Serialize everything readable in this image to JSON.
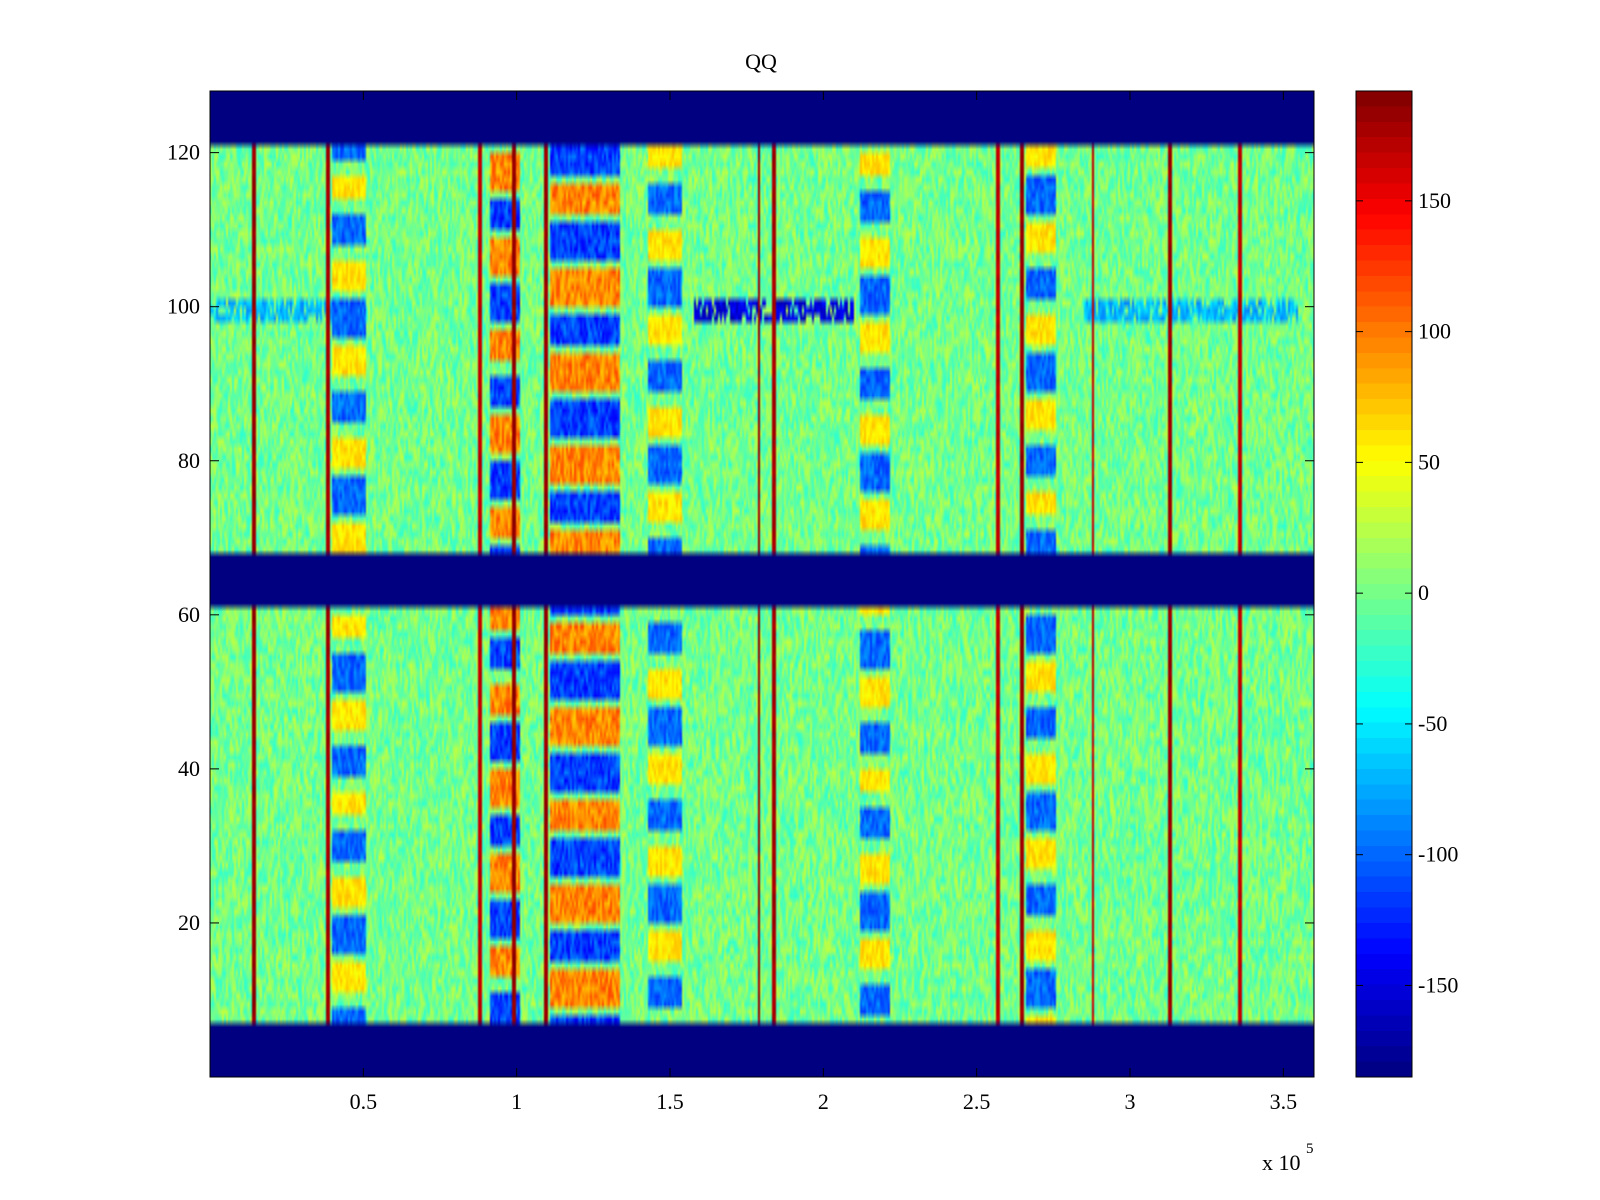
{
  "chart_data": {
    "type": "heatmap",
    "title": "QQ",
    "xlabel": "",
    "ylabel": "",
    "xlim": [
      0,
      360000
    ],
    "ylim": [
      0,
      128
    ],
    "x_ticks": [
      50000,
      100000,
      150000,
      200000,
      250000,
      300000,
      350000
    ],
    "x_tick_labels": [
      "0.5",
      "1",
      "1.5",
      "2",
      "2.5",
      "3",
      "3.5"
    ],
    "x_exponent_label": "x 10",
    "x_exponent_power": "5",
    "y_ticks": [
      20,
      40,
      60,
      80,
      100,
      120
    ],
    "y_tick_labels": [
      "20",
      "40",
      "60",
      "80",
      "100",
      "120"
    ],
    "colormap": "jet",
    "clim": [
      -185,
      192
    ],
    "colorbar": {
      "placement": "right",
      "ticks": [
        -150,
        -100,
        -50,
        0,
        50,
        100,
        150
      ],
      "tick_labels": [
        "-150",
        "-100",
        "-50",
        "0",
        "50",
        "100",
        "150"
      ]
    },
    "constant_rows": [
      {
        "y_range": [
          0,
          7
        ],
        "value": -185
      },
      {
        "y_range": [
          61,
          68
        ],
        "value": -185
      },
      {
        "y_range": [
          121,
          128
        ],
        "value": -185
      }
    ],
    "background": {
      "mean": 0,
      "spread": 28
    },
    "vertical_lines": [
      {
        "x": 14500,
        "value": 190
      },
      {
        "x": 38500,
        "value": 185
      },
      {
        "x": 88000,
        "value": 175
      },
      {
        "x": 99000,
        "value": 192
      },
      {
        "x": 109500,
        "value": 190
      },
      {
        "x": 179000,
        "value": 190
      },
      {
        "x": 184000,
        "value": 185
      },
      {
        "x": 257000,
        "value": 175
      },
      {
        "x": 265000,
        "value": 190
      },
      {
        "x": 288000,
        "value": 175
      },
      {
        "x": 313000,
        "value": 190
      },
      {
        "x": 336000,
        "value": 175
      }
    ],
    "column_bands": [
      {
        "x_range": [
          40000,
          51000
        ],
        "pattern": "cool"
      },
      {
        "x_range": [
          91000,
          101000
        ],
        "pattern": "mixed"
      },
      {
        "x_range": [
          111000,
          134000
        ],
        "pattern": "mixed"
      },
      {
        "x_range": [
          143000,
          154000
        ],
        "pattern": "cool"
      },
      {
        "x_range": [
          212000,
          222000
        ],
        "pattern": "cool"
      },
      {
        "x_range": [
          266000,
          276000
        ],
        "pattern": "cool"
      }
    ],
    "row_features": [
      {
        "y_range": [
          98,
          101
        ],
        "x_range": [
          158000,
          210000
        ],
        "value": -170
      },
      {
        "y_range": [
          98,
          101
        ],
        "x_range": [
          0,
          40000
        ],
        "value": -90
      },
      {
        "y_range": [
          98,
          101
        ],
        "x_range": [
          285000,
          355000
        ],
        "value": -90
      }
    ]
  }
}
